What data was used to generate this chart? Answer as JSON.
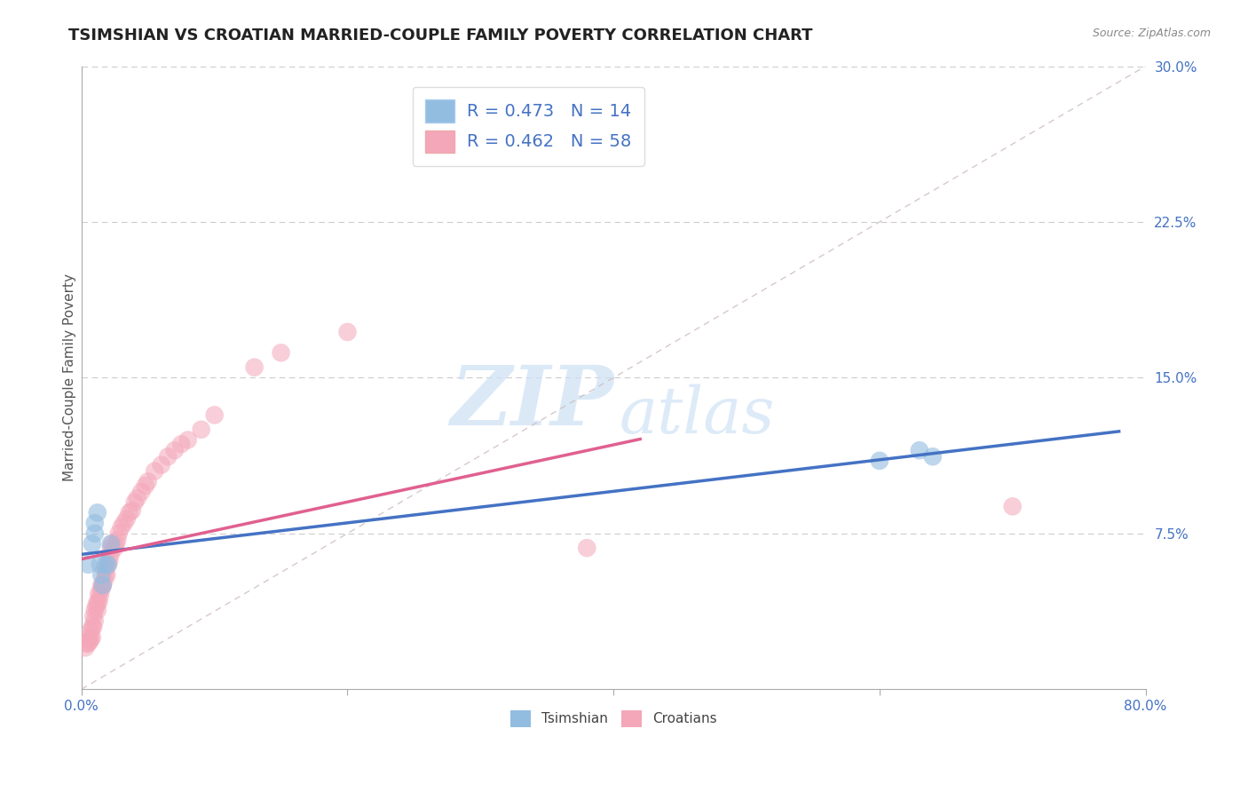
{
  "title": "TSIMSHIAN VS CROATIAN MARRIED-COUPLE FAMILY POVERTY CORRELATION CHART",
  "source": "Source: ZipAtlas.com",
  "ylabel": "Married-Couple Family Poverty",
  "xlim": [
    0.0,
    0.8
  ],
  "ylim": [
    0.0,
    0.3
  ],
  "xticks": [
    0.0,
    0.2,
    0.4,
    0.6,
    0.8
  ],
  "xticklabels": [
    "0.0%",
    "",
    "",
    "",
    "80.0%"
  ],
  "yticks": [
    0.0,
    0.075,
    0.15,
    0.225,
    0.3
  ],
  "yticklabels": [
    "",
    "7.5%",
    "15.0%",
    "22.5%",
    "30.0%"
  ],
  "tsimshian_R": 0.473,
  "tsimshian_N": 14,
  "croatian_R": 0.462,
  "croatian_N": 58,
  "tsimshian_color": "#92bce0",
  "croatian_color": "#f4a7b9",
  "tsimshian_line_color": "#4472c4",
  "croatian_line_color": "#e06090",
  "ref_line_color": "#ddbbbb",
  "background_color": "#ffffff",
  "watermark_zip": "ZIP",
  "watermark_atlas": "atlas",
  "tsimshian_x": [
    0.005,
    0.008,
    0.01,
    0.01,
    0.012,
    0.014,
    0.015,
    0.016,
    0.018,
    0.02,
    0.022,
    0.6,
    0.63,
    0.64
  ],
  "tsimshian_y": [
    0.06,
    0.07,
    0.075,
    0.08,
    0.085,
    0.06,
    0.055,
    0.05,
    0.06,
    0.06,
    0.07,
    0.11,
    0.115,
    0.112
  ],
  "croatian_x": [
    0.003,
    0.004,
    0.005,
    0.006,
    0.006,
    0.007,
    0.007,
    0.008,
    0.008,
    0.009,
    0.009,
    0.01,
    0.01,
    0.011,
    0.012,
    0.012,
    0.013,
    0.013,
    0.014,
    0.015,
    0.015,
    0.016,
    0.017,
    0.018,
    0.018,
    0.019,
    0.02,
    0.021,
    0.022,
    0.022,
    0.023,
    0.025,
    0.026,
    0.027,
    0.028,
    0.03,
    0.032,
    0.034,
    0.036,
    0.038,
    0.04,
    0.042,
    0.045,
    0.048,
    0.05,
    0.055,
    0.06,
    0.065,
    0.07,
    0.075,
    0.08,
    0.09,
    0.1,
    0.13,
    0.15,
    0.2,
    0.38,
    0.7
  ],
  "croatian_y": [
    0.02,
    0.022,
    0.022,
    0.023,
    0.025,
    0.024,
    0.028,
    0.025,
    0.03,
    0.03,
    0.035,
    0.033,
    0.038,
    0.04,
    0.038,
    0.042,
    0.042,
    0.046,
    0.045,
    0.048,
    0.05,
    0.05,
    0.052,
    0.055,
    0.058,
    0.055,
    0.06,
    0.062,
    0.065,
    0.068,
    0.07,
    0.068,
    0.07,
    0.072,
    0.075,
    0.078,
    0.08,
    0.082,
    0.085,
    0.086,
    0.09,
    0.092,
    0.095,
    0.098,
    0.1,
    0.105,
    0.108,
    0.112,
    0.115,
    0.118,
    0.12,
    0.125,
    0.132,
    0.155,
    0.162,
    0.172,
    0.068,
    0.088
  ],
  "title_fontsize": 13,
  "axis_label_fontsize": 11,
  "tick_fontsize": 11,
  "legend_fontsize": 13,
  "watermark_fontsize_zip": 68,
  "watermark_fontsize_atlas": 52
}
